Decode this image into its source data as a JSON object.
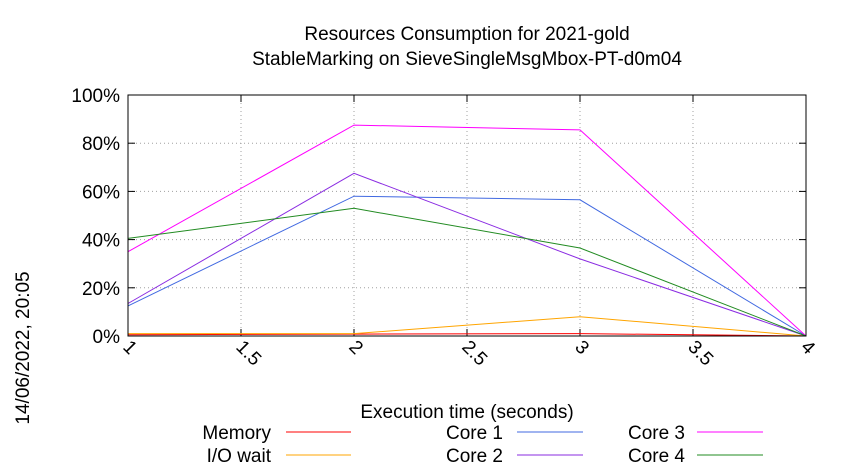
{
  "chart_data": {
    "type": "line",
    "title_line1": "Resources Consumption for 2021-gold",
    "title_line2": "StableMarking on SieveSingleMsgMbox-PT-d0m04",
    "xlabel": "Execution time (seconds)",
    "ylabel": "",
    "timestamp": "14/06/2022, 20:05",
    "xlim": [
      1,
      4
    ],
    "ylim": [
      0,
      100
    ],
    "grid": true,
    "x_ticks": [
      1,
      1.5,
      2,
      2.5,
      3,
      3.5,
      4
    ],
    "x_tick_labels": [
      "1",
      "1.5",
      "2",
      "2.5",
      "3",
      "3.5",
      "4"
    ],
    "y_ticks": [
      0,
      20,
      40,
      60,
      80,
      100
    ],
    "y_tick_labels": [
      "0%",
      "20%",
      "40%",
      "60%",
      "80%",
      "100%"
    ],
    "legend_position": "bottom",
    "series": [
      {
        "name": "Memory",
        "color": "#ff0000",
        "x": [
          1,
          2,
          3,
          4
        ],
        "y": [
          0.5,
          0.8,
          1.0,
          0
        ]
      },
      {
        "name": "I/O wait",
        "color": "#ffa500",
        "x": [
          1,
          2,
          3,
          4
        ],
        "y": [
          1.0,
          1.0,
          8.0,
          0
        ]
      },
      {
        "name": "Core 1",
        "color": "#4169e1",
        "x": [
          1,
          2,
          3,
          4
        ],
        "y": [
          12.5,
          58.0,
          56.5,
          0
        ]
      },
      {
        "name": "Core 2",
        "color": "#8a2be2",
        "x": [
          1,
          2,
          3,
          4
        ],
        "y": [
          13.5,
          67.5,
          32.0,
          0
        ]
      },
      {
        "name": "Core 3",
        "color": "#ff00ff",
        "x": [
          1,
          2,
          3,
          4
        ],
        "y": [
          35.0,
          87.5,
          85.5,
          0
        ]
      },
      {
        "name": "Core 4",
        "color": "#228b22",
        "x": [
          1,
          2,
          3,
          4
        ],
        "y": [
          40.5,
          53.0,
          36.5,
          0
        ]
      }
    ]
  }
}
